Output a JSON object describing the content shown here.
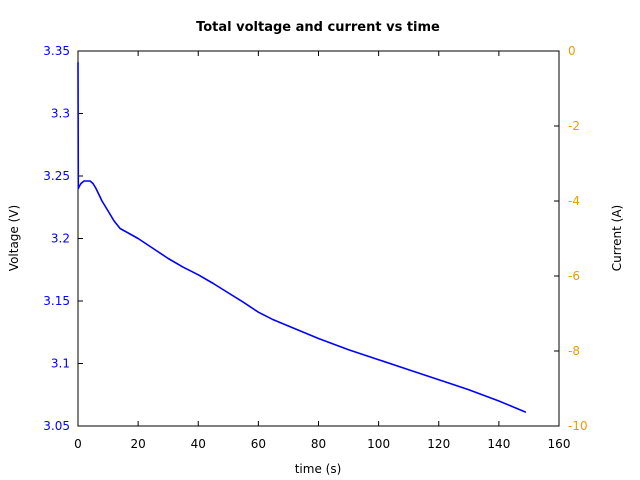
{
  "chart_data": {
    "type": "line",
    "title": "Total voltage and current vs time",
    "xlabel": "time (s)",
    "ylabel": "Voltage (V)",
    "y2label": "Current (A)",
    "xlim": [
      0,
      160
    ],
    "ylim": [
      3.05,
      3.35
    ],
    "y2lim": [
      -10,
      0
    ],
    "x_ticks": [
      "0",
      "20",
      "40",
      "60",
      "80",
      "100",
      "120",
      "140",
      "160"
    ],
    "y_ticks": [
      "3.35",
      "3.3",
      "3.25",
      "3.2",
      "3.15",
      "3.1",
      "3.05"
    ],
    "y2_ticks": [
      "0",
      "-2",
      "-4",
      "-6",
      "-8",
      "-10"
    ],
    "grid": false,
    "legend": null,
    "colors": {
      "voltage": "#0000ff",
      "current_axis": "#e69f00",
      "frame": "#000000"
    },
    "series": [
      {
        "name": "Voltage",
        "axis": "left",
        "x": [
          0,
          0.1,
          0.5,
          1,
          2,
          3,
          4,
          5,
          6,
          8,
          10,
          12,
          14,
          15.5,
          17,
          20,
          25,
          30,
          35,
          40,
          45,
          49,
          55,
          60,
          65,
          70,
          80,
          90,
          100,
          110,
          120,
          130,
          140,
          149
        ],
        "values": [
          3.341,
          3.24,
          3.242,
          3.244,
          3.246,
          3.246,
          3.246,
          3.244,
          3.24,
          3.23,
          3.222,
          3.214,
          3.208,
          3.206,
          3.204,
          3.2,
          3.192,
          3.184,
          3.177,
          3.171,
          3.164,
          3.158,
          3.149,
          3.141,
          3.135,
          3.13,
          3.12,
          3.111,
          3.103,
          3.095,
          3.087,
          3.079,
          3.07,
          3.061
        ]
      }
    ]
  }
}
